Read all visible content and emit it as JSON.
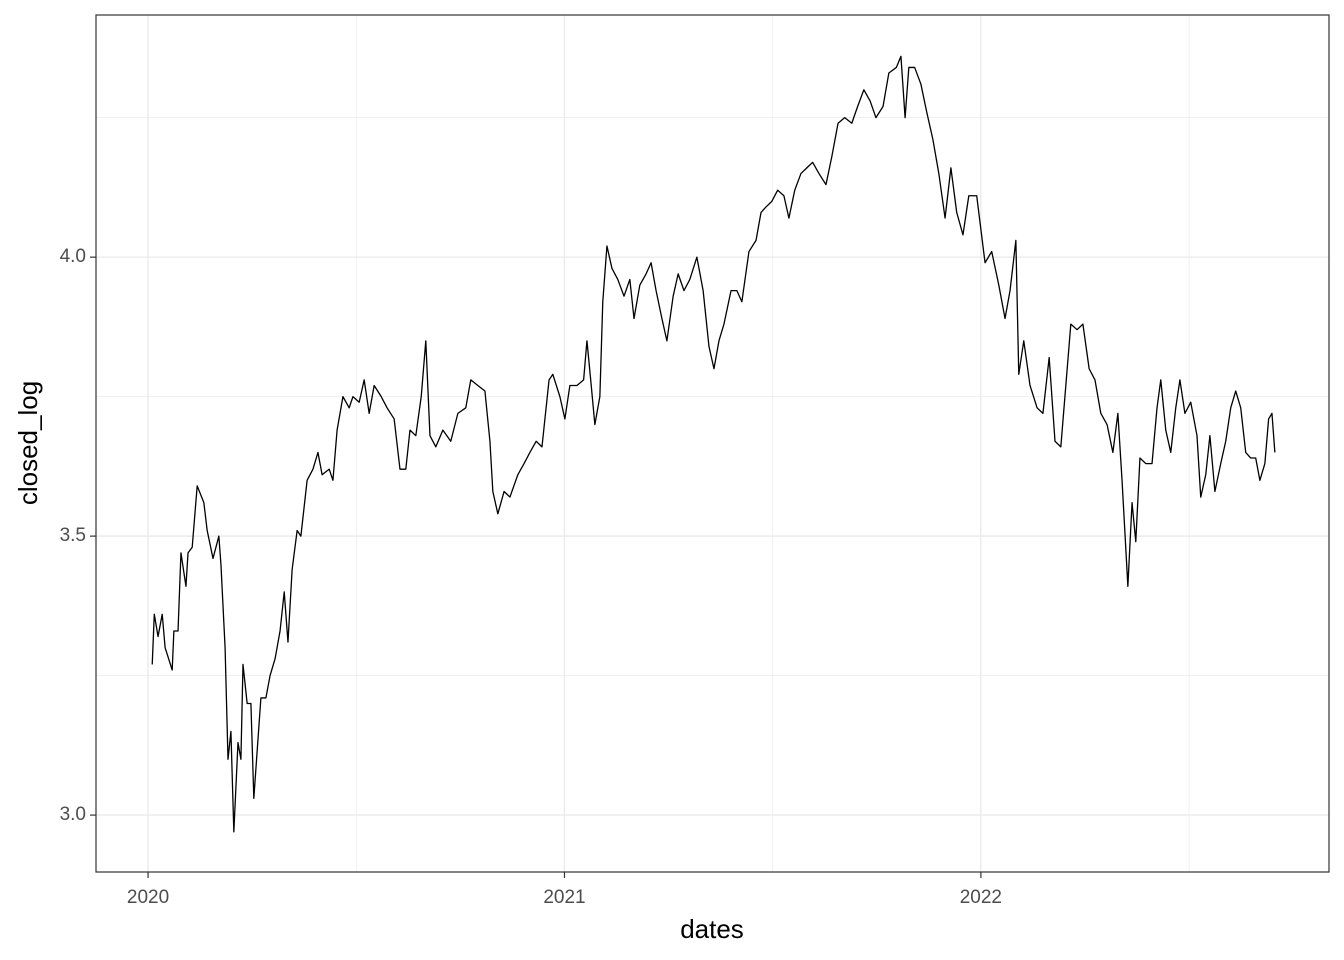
{
  "chart_data": {
    "type": "line",
    "x_label": "dates",
    "y_label": "closed_log",
    "xlim": [
      2019.875,
      2022.836
    ],
    "ylim": [
      2.898,
      4.434
    ],
    "xticks": [
      2020,
      2021,
      2022
    ],
    "yticks": [
      {
        "value": 3,
        "label": "3.0"
      },
      3.5,
      {
        "value": 4,
        "label": "4.0"
      }
    ],
    "xminor": [
      2020.5,
      2021.5,
      2022.5
    ],
    "yminor": [
      3.25,
      3.75,
      4.25
    ],
    "grid": true,
    "series": [
      {
        "color": "#000000",
        "x": [
          2020.01,
          2020.015,
          2020.024,
          2020.034,
          2020.041,
          2020.058,
          2020.062,
          2020.072,
          2020.079,
          2020.091,
          2020.096,
          2020.106,
          2020.118,
          2020.134,
          2020.142,
          2020.156,
          2020.17,
          2020.175,
          2020.185,
          2020.192,
          2020.199,
          2020.206,
          2020.216,
          2020.223,
          2020.228,
          2020.238,
          2020.247,
          2020.254,
          2020.271,
          2020.283,
          2020.293,
          2020.305,
          2020.317,
          2020.327,
          2020.336,
          2020.346,
          2020.358,
          2020.367,
          2020.382,
          2020.396,
          2020.408,
          2020.418,
          2020.435,
          2020.444,
          2020.454,
          2020.468,
          2020.483,
          2020.492,
          2020.507,
          2020.519,
          2020.531,
          2020.543,
          2020.56,
          2020.574,
          2020.591,
          2020.605,
          2020.619,
          2020.629,
          2020.643,
          2020.656,
          2020.667,
          2020.677,
          2020.691,
          2020.708,
          2020.727,
          2020.744,
          2020.763,
          2020.775,
          2020.792,
          2020.809,
          2020.821,
          2020.828,
          2020.84,
          2020.855,
          2020.869,
          2020.888,
          2020.903,
          2020.917,
          2020.932,
          2020.946,
          2020.963,
          2020.972,
          2020.989,
          2021.001,
          2021.013,
          2021.03,
          2021.046,
          2021.054,
          2021.063,
          2021.073,
          2021.085,
          2021.092,
          2021.102,
          2021.114,
          2021.128,
          2021.143,
          2021.157,
          2021.167,
          2021.181,
          2021.196,
          2021.208,
          2021.22,
          2021.234,
          2021.246,
          2021.261,
          2021.273,
          2021.287,
          2021.301,
          2021.318,
          2021.333,
          2021.347,
          2021.359,
          2021.371,
          2021.383,
          2021.4,
          2021.414,
          2021.426,
          2021.443,
          2021.46,
          2021.472,
          2021.484,
          2021.498,
          2021.512,
          2021.527,
          2021.539,
          2021.553,
          2021.568,
          2021.582,
          2021.596,
          2021.611,
          2021.628,
          2021.642,
          2021.657,
          2021.673,
          2021.69,
          2021.704,
          2021.719,
          2021.734,
          2021.748,
          2021.765,
          2021.779,
          2021.797,
          2021.808,
          2021.818,
          2021.827,
          2021.841,
          2021.856,
          2021.87,
          2021.885,
          2021.899,
          2021.914,
          2021.928,
          2021.942,
          2021.957,
          2021.971,
          2021.99,
          2022.01,
          2022.026,
          2022.043,
          2022.058,
          2022.07,
          2022.084,
          2022.091,
          2022.103,
          2022.118,
          2022.135,
          2022.149,
          2022.164,
          2022.178,
          2022.192,
          2022.204,
          2022.216,
          2022.231,
          2022.245,
          2022.26,
          2022.274,
          2022.288,
          2022.303,
          2022.317,
          2022.329,
          2022.339,
          2022.353,
          2022.363,
          2022.372,
          2022.382,
          2022.396,
          2022.411,
          2022.423,
          2022.432,
          2022.444,
          2022.456,
          2022.468,
          2022.478,
          2022.49,
          2022.504,
          2022.519,
          2022.528,
          2022.54,
          2022.55,
          2022.562,
          2022.576,
          2022.588,
          2022.6,
          2022.612,
          2022.624,
          2022.636,
          2022.648,
          2022.66,
          2022.67,
          2022.682,
          2022.691,
          2022.699,
          2022.706
        ],
        "values": [
          3.27,
          3.36,
          3.32,
          3.36,
          3.3,
          3.26,
          3.33,
          3.33,
          3.47,
          3.41,
          3.47,
          3.48,
          3.59,
          3.56,
          3.51,
          3.46,
          3.5,
          3.45,
          3.3,
          3.1,
          3.15,
          2.97,
          3.13,
          3.1,
          3.27,
          3.2,
          3.2,
          3.03,
          3.21,
          3.21,
          3.25,
          3.28,
          3.33,
          3.4,
          3.31,
          3.44,
          3.51,
          3.5,
          3.6,
          3.62,
          3.65,
          3.61,
          3.62,
          3.6,
          3.69,
          3.75,
          3.73,
          3.75,
          3.74,
          3.78,
          3.72,
          3.77,
          3.75,
          3.73,
          3.71,
          3.62,
          3.62,
          3.69,
          3.68,
          3.75,
          3.85,
          3.68,
          3.66,
          3.69,
          3.67,
          3.72,
          3.73,
          3.78,
          3.77,
          3.76,
          3.67,
          3.58,
          3.54,
          3.58,
          3.57,
          3.61,
          3.63,
          3.65,
          3.67,
          3.66,
          3.78,
          3.79,
          3.75,
          3.71,
          3.77,
          3.77,
          3.78,
          3.85,
          3.78,
          3.7,
          3.75,
          3.92,
          4.02,
          3.98,
          3.96,
          3.93,
          3.96,
          3.89,
          3.95,
          3.97,
          3.99,
          3.94,
          3.89,
          3.85,
          3.93,
          3.97,
          3.94,
          3.96,
          4.0,
          3.94,
          3.84,
          3.8,
          3.85,
          3.88,
          3.94,
          3.94,
          3.92,
          4.01,
          4.03,
          4.08,
          4.09,
          4.1,
          4.12,
          4.11,
          4.07,
          4.12,
          4.15,
          4.16,
          4.17,
          4.15,
          4.13,
          4.18,
          4.24,
          4.25,
          4.24,
          4.27,
          4.3,
          4.28,
          4.25,
          4.27,
          4.33,
          4.34,
          4.36,
          4.25,
          4.34,
          4.34,
          4.31,
          4.26,
          4.21,
          4.15,
          4.07,
          4.16,
          4.08,
          4.04,
          4.11,
          4.11,
          3.99,
          4.01,
          3.95,
          3.89,
          3.94,
          4.03,
          3.79,
          3.85,
          3.77,
          3.73,
          3.72,
          3.82,
          3.67,
          3.66,
          3.77,
          3.88,
          3.87,
          3.88,
          3.8,
          3.78,
          3.72,
          3.7,
          3.65,
          3.72,
          3.6,
          3.41,
          3.56,
          3.49,
          3.64,
          3.63,
          3.63,
          3.73,
          3.78,
          3.69,
          3.65,
          3.73,
          3.78,
          3.72,
          3.74,
          3.68,
          3.57,
          3.61,
          3.68,
          3.58,
          3.63,
          3.67,
          3.73,
          3.76,
          3.73,
          3.65,
          3.64,
          3.64,
          3.6,
          3.63,
          3.71,
          3.72,
          3.65
        ]
      }
    ]
  }
}
